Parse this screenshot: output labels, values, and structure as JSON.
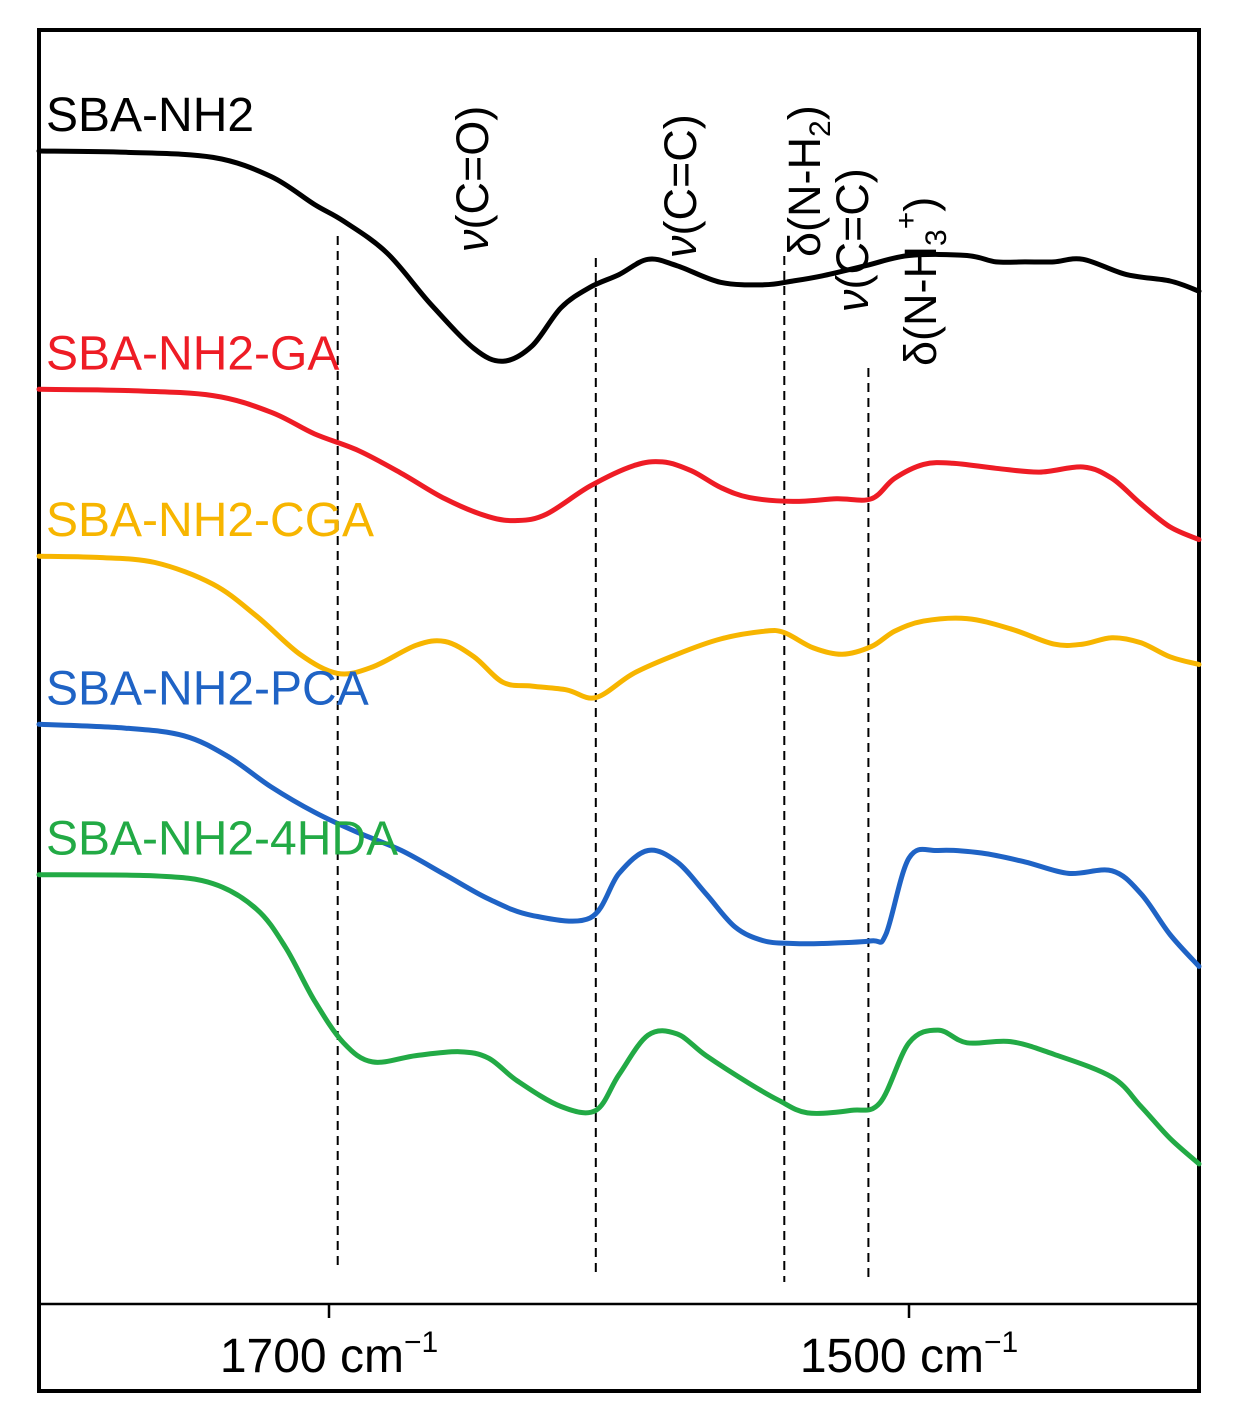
{
  "chart_data": {
    "type": "line",
    "title": "",
    "xlabel": "",
    "ylabel": "",
    "x_reversed": true,
    "xlim": [
      1800,
      1400
    ],
    "x_ticks": [
      {
        "value": 1700,
        "label": "1700 cm",
        "sup": "−1"
      },
      {
        "value": 1500,
        "label": "1500 cm",
        "sup": "−1"
      }
    ],
    "band_annotations": [
      {
        "wavenumber": 1697,
        "greek": "ν",
        "label": "(C=O)",
        "sub": "",
        "sup": "",
        "close": ""
      },
      {
        "wavenumber": 1608,
        "greek": "ν",
        "label": "(C=C)",
        "sub": "",
        "sup": "",
        "close": ""
      },
      {
        "wavenumber": 1543,
        "greek": "δ",
        "label": "(N-H",
        "sub": "2",
        "sup": "",
        "close": ")"
      },
      {
        "wavenumber": 1543,
        "greek": "ν",
        "label": "(C=C)",
        "sub": "",
        "sup": "",
        "close": ""
      },
      {
        "wavenumber": 1514,
        "greek": "δ",
        "label": "(N-H",
        "sub": "3",
        "sup": "+",
        "close": ")"
      }
    ],
    "series": [
      {
        "name": "SBA-NH2",
        "color": "#000000",
        "x": [
          1800,
          1770,
          1740,
          1720,
          1705,
          1695,
          1680,
          1665,
          1650,
          1640,
          1630,
          1620,
          1610,
          1600,
          1590,
          1580,
          1565,
          1550,
          1540,
          1530,
          1515,
          1500,
          1480,
          1470,
          1460,
          1450,
          1440,
          1425,
          1410,
          1400
        ],
        "y": [
          0.905,
          0.904,
          0.9,
          0.885,
          0.863,
          0.85,
          0.825,
          0.785,
          0.75,
          0.74,
          0.752,
          0.782,
          0.798,
          0.808,
          0.82,
          0.815,
          0.802,
          0.8,
          0.803,
          0.807,
          0.815,
          0.823,
          0.823,
          0.818,
          0.818,
          0.818,
          0.82,
          0.808,
          0.803,
          0.795
        ]
      },
      {
        "name": "SBA-NH2-GA",
        "color": "#ee1c25",
        "x": [
          1800,
          1770,
          1740,
          1720,
          1705,
          1690,
          1675,
          1660,
          1645,
          1635,
          1625,
          1610,
          1595,
          1585,
          1575,
          1565,
          1555,
          1540,
          1525,
          1513,
          1505,
          1495,
          1485,
          1470,
          1455,
          1440,
          1430,
          1420,
          1410,
          1400
        ],
        "y": [
          0.718,
          0.717,
          0.713,
          0.7,
          0.683,
          0.67,
          0.652,
          0.632,
          0.618,
          0.615,
          0.62,
          0.642,
          0.658,
          0.661,
          0.654,
          0.641,
          0.633,
          0.63,
          0.632,
          0.632,
          0.648,
          0.659,
          0.66,
          0.656,
          0.653,
          0.657,
          0.648,
          0.628,
          0.61,
          0.6
        ]
      },
      {
        "name": "SBA-NH2-CGA",
        "color": "#f7b500",
        "x": [
          1800,
          1780,
          1760,
          1740,
          1725,
          1710,
          1697,
          1685,
          1670,
          1660,
          1650,
          1640,
          1630,
          1618,
          1608,
          1595,
          1580,
          1565,
          1550,
          1543,
          1533,
          1523,
          1513,
          1505,
          1495,
          1480,
          1465,
          1450,
          1440,
          1430,
          1420,
          1410,
          1400
        ],
        "y": [
          0.587,
          0.586,
          0.582,
          0.565,
          0.54,
          0.51,
          0.495,
          0.5,
          0.517,
          0.52,
          0.508,
          0.488,
          0.485,
          0.482,
          0.476,
          0.495,
          0.51,
          0.522,
          0.528,
          0.527,
          0.515,
          0.51,
          0.516,
          0.528,
          0.536,
          0.538,
          0.53,
          0.518,
          0.518,
          0.523,
          0.519,
          0.508,
          0.502
        ]
      },
      {
        "name": "SBA-NH2-PCA",
        "color": "#1f63c5",
        "x": [
          1800,
          1770,
          1750,
          1735,
          1720,
          1705,
          1690,
          1675,
          1660,
          1645,
          1630,
          1610,
          1600,
          1590,
          1580,
          1570,
          1560,
          1550,
          1540,
          1530,
          1513,
          1508,
          1500,
          1490,
          1475,
          1460,
          1445,
          1430,
          1420,
          1410,
          1400
        ],
        "y": [
          0.455,
          0.452,
          0.446,
          0.43,
          0.406,
          0.386,
          0.37,
          0.356,
          0.337,
          0.318,
          0.305,
          0.303,
          0.338,
          0.356,
          0.347,
          0.322,
          0.296,
          0.285,
          0.283,
          0.283,
          0.285,
          0.29,
          0.35,
          0.356,
          0.354,
          0.347,
          0.338,
          0.34,
          0.322,
          0.29,
          0.265
        ]
      },
      {
        "name": "SBA-NH2-4HDA",
        "color": "#22aa45",
        "x": [
          1800,
          1760,
          1740,
          1725,
          1715,
          1705,
          1695,
          1685,
          1670,
          1655,
          1645,
          1635,
          1620,
          1608,
          1600,
          1590,
          1580,
          1570,
          1555,
          1545,
          1535,
          1520,
          1510,
          1500,
          1490,
          1480,
          1465,
          1450,
          1430,
          1420,
          1410,
          1400
        ],
        "y": [
          0.337,
          0.336,
          0.33,
          0.31,
          0.28,
          0.238,
          0.205,
          0.19,
          0.195,
          0.198,
          0.193,
          0.175,
          0.155,
          0.152,
          0.18,
          0.211,
          0.212,
          0.195,
          0.173,
          0.16,
          0.15,
          0.152,
          0.158,
          0.205,
          0.215,
          0.205,
          0.206,
          0.196,
          0.178,
          0.155,
          0.13,
          0.11
        ]
      }
    ],
    "legend_placement": "series labels at left above each curve",
    "grid": false
  }
}
